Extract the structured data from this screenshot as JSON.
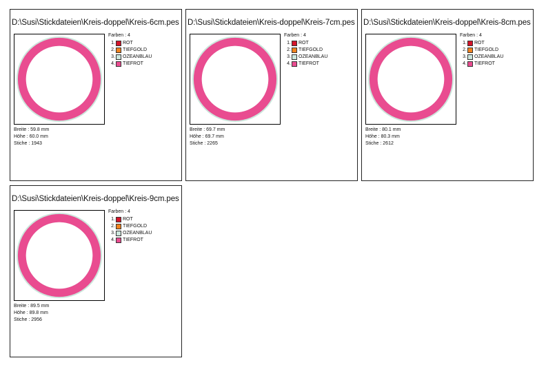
{
  "colors_legend_label": "Farben : 4",
  "thread_colors": [
    {
      "index": "1.",
      "name": "ROT",
      "hex": "#d4142a"
    },
    {
      "index": "2.",
      "name": "TIEFGOLD",
      "hex": "#f0821e"
    },
    {
      "index": "3.",
      "name": "OZEANBLAU",
      "hex": "#cce6dc"
    },
    {
      "index": "4.",
      "name": "TIEFROT",
      "hex": "#e94c90"
    }
  ],
  "designs": [
    {
      "title": "D:\\Susi\\Stickdateien\\Kreis-doppel\\Kreis-6cm.pes",
      "width": "Breite : 59.8 mm",
      "height": "Höhe : 60.0 mm",
      "stitches": "Stiche : 1943"
    },
    {
      "title": "D:\\Susi\\Stickdateien\\Kreis-doppel\\Kreis-7cm.pes",
      "width": "Breite : 69.7 mm",
      "height": "Höhe : 69.7 mm",
      "stitches": "Stiche : 2265"
    },
    {
      "title": "D:\\Susi\\Stickdateien\\Kreis-doppel\\Kreis-8cm.pes",
      "width": "Breite : 80.1 mm",
      "height": "Höhe : 80.3 mm",
      "stitches": "Stiche : 2612"
    },
    {
      "title": "D:\\Susi\\Stickdateien\\Kreis-doppel\\Kreis-9cm.pes",
      "width": "Breite : 89.5 mm",
      "height": "Höhe : 89.8 mm",
      "stitches": "Stiche : 2956"
    }
  ]
}
